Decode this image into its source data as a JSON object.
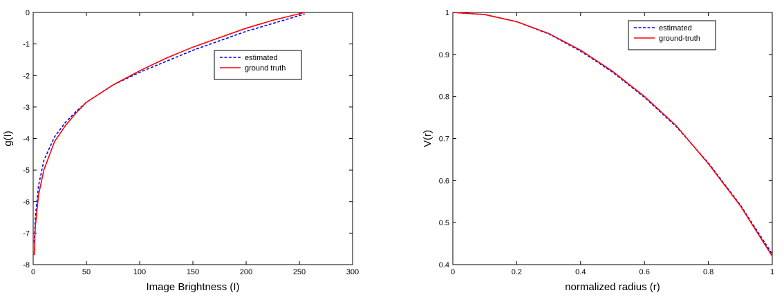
{
  "chart_data": [
    {
      "type": "line",
      "xlabel": "Image Brightness (I)",
      "ylabel": "g(I)",
      "x": [
        1,
        2,
        5,
        10,
        20,
        30,
        40,
        50,
        75,
        100,
        125,
        150,
        175,
        200,
        225,
        255
      ],
      "series": [
        {
          "name": "estimated",
          "color": "#0000ff",
          "dash": true,
          "values": [
            -7.3,
            -6.5,
            -5.5,
            -4.7,
            -3.95,
            -3.5,
            -3.15,
            -2.85,
            -2.3,
            -1.9,
            -1.55,
            -1.2,
            -0.9,
            -0.6,
            -0.35,
            -0.05
          ]
        },
        {
          "name": "ground truth",
          "color": "#ff0000",
          "dash": false,
          "values": [
            -7.7,
            -6.8,
            -5.8,
            -5.0,
            -4.1,
            -3.6,
            -3.2,
            -2.85,
            -2.3,
            -1.85,
            -1.45,
            -1.1,
            -0.8,
            -0.5,
            -0.25,
            0
          ]
        }
      ],
      "xlim": [
        0,
        300
      ],
      "xticks": [
        0,
        50,
        100,
        150,
        200,
        250,
        300
      ],
      "ylim": [
        -8,
        0
      ],
      "yticks": [
        -8,
        -7,
        -6,
        -5,
        -4,
        -3,
        -2,
        -1,
        0
      ],
      "legend": "upper right"
    },
    {
      "type": "line",
      "xlabel": "normalized radius (r)",
      "ylabel": "V(r)",
      "x": [
        0,
        0.1,
        0.2,
        0.3,
        0.4,
        0.5,
        0.6,
        0.7,
        0.8,
        0.9,
        1
      ],
      "series": [
        {
          "name": "estimated",
          "color": "#0000ff",
          "dash": true,
          "values": [
            1,
            0.995,
            0.978,
            0.949,
            0.908,
            0.858,
            0.798,
            0.728,
            0.642,
            0.542,
            0.425
          ]
        },
        {
          "name": "ground-truth",
          "color": "#ff0000",
          "dash": false,
          "values": [
            1,
            0.995,
            0.978,
            0.95,
            0.91,
            0.86,
            0.8,
            0.73,
            0.64,
            0.54,
            0.42
          ]
        }
      ],
      "xlim": [
        0,
        1
      ],
      "xticks": [
        0,
        0.2,
        0.4,
        0.6,
        0.8,
        1
      ],
      "ylim": [
        0.4,
        1
      ],
      "yticks": [
        0.4,
        0.5,
        0.6,
        0.7,
        0.8,
        0.9,
        1
      ],
      "legend": "upper right"
    }
  ]
}
